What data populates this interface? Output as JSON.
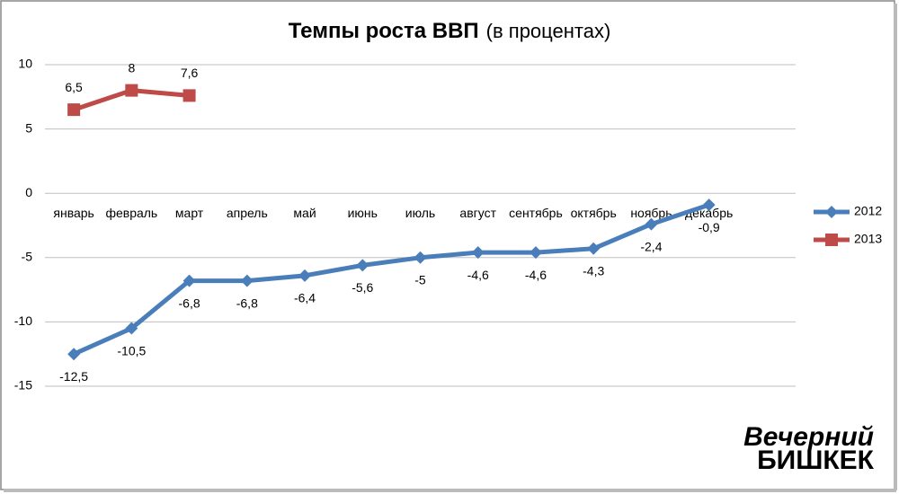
{
  "chart_data": {
    "type": "line",
    "title": "Темпы роста ВВП",
    "title_note": "(в процентах)",
    "categories": [
      "январь",
      "февраль",
      "март",
      "апрель",
      "май",
      "июнь",
      "июль",
      "август",
      "сентябрь",
      "октябрь",
      "ноябрь",
      "декабрь",
      null
    ],
    "series": [
      {
        "name": "2012",
        "color": "#4a7ebb",
        "marker": "diamond",
        "values": [
          -12.5,
          -10.5,
          -6.8,
          -6.8,
          -6.4,
          -5.6,
          -5,
          -4.6,
          -4.6,
          -4.3,
          -2.4,
          -0.9,
          null
        ],
        "value_labels": [
          "-12,5",
          "-10,5",
          "-6,8",
          "-6,8",
          "-6,4",
          "-5,6",
          "-5",
          "-4,6",
          "-4,6",
          "-4,3",
          "-2,4",
          "-0,9",
          null
        ]
      },
      {
        "name": "2013",
        "color": "#be4b48",
        "marker": "square",
        "values": [
          6.5,
          8,
          7.6,
          null,
          null,
          null,
          null,
          null,
          null,
          null,
          null,
          null,
          null
        ],
        "value_labels": [
          "6,5",
          "8",
          "7,6",
          null,
          null,
          null,
          null,
          null,
          null,
          null,
          null,
          null,
          null
        ]
      }
    ],
    "ylim": [
      -15,
      10
    ],
    "yticks": [
      -15,
      -10,
      -5,
      0,
      5,
      10
    ],
    "grid": true,
    "legend": "right",
    "watermark": [
      "Вечерний",
      "БИШКЕК"
    ]
  }
}
